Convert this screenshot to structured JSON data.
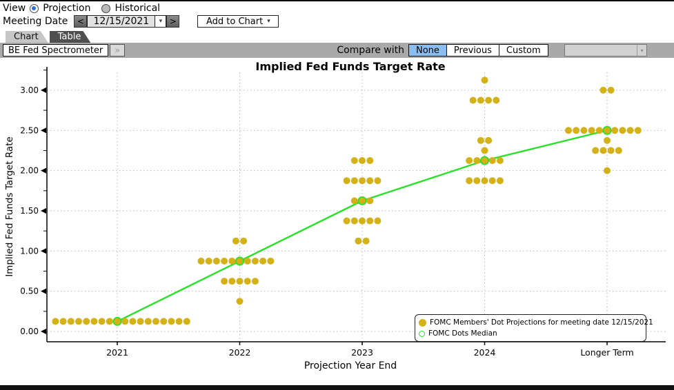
{
  "view_bar": {
    "label": "View",
    "options": [
      {
        "label": "Projection",
        "selected": true
      },
      {
        "label": "Historical",
        "selected": false
      }
    ]
  },
  "meeting_bar": {
    "label": "Meeting Date",
    "prev_icon": "<",
    "date_value": "12/15/2021",
    "date_caret": "▾",
    "next_icon": ">",
    "add_button_label": "Add to Chart",
    "add_button_caret": "▾"
  },
  "tabs": [
    {
      "label": "Chart",
      "active": true
    },
    {
      "label": "Table",
      "active": false
    }
  ],
  "toolbar": {
    "source_button": "BE Fed Spectrometer",
    "expand_icon": "»",
    "compare_label": "Compare with",
    "compare_options": [
      {
        "label": "None",
        "selected": true
      },
      {
        "label": "Previous",
        "selected": false
      },
      {
        "label": "Custom",
        "selected": false
      }
    ],
    "custom_dropdown": {
      "value": "",
      "caret": "▾"
    }
  },
  "chart_data": {
    "type": "scatter",
    "title": "Implied Fed Funds Target Rate",
    "xlabel": "Projection Year End",
    "ylabel": "Implied Fed Funds Target Rate",
    "categories": [
      "2021",
      "2022",
      "2023",
      "2024",
      "Longer Term"
    ],
    "ylim": [
      0,
      3.25
    ],
    "yticks": [
      0.0,
      0.5,
      1.0,
      1.5,
      2.0,
      2.5,
      3.0
    ],
    "minor_tick_step": 0.25,
    "grid": true,
    "legend_position": "bottom-right",
    "colors": {
      "dots": "#d3b117",
      "median": "#2ae02a",
      "gridline": "#b8b8b8"
    },
    "dot_series": {
      "name": "FOMC Members' Dot Projections for meeting date 12/15/2021",
      "groups": [
        {
          "category": "2021",
          "rows": [
            {
              "value": 0.125,
              "count": 18,
              "median_index": 8
            }
          ]
        },
        {
          "category": "2022",
          "rows": [
            {
              "value": 1.125,
              "count": 2
            },
            {
              "value": 0.875,
              "count": 10,
              "median_index": 5
            },
            {
              "value": 0.625,
              "count": 5
            },
            {
              "value": 0.375,
              "count": 1
            }
          ]
        },
        {
          "category": "2023",
          "rows": [
            {
              "value": 2.125,
              "count": 3
            },
            {
              "value": 1.875,
              "count": 5
            },
            {
              "value": 1.625,
              "count": 3,
              "median_index": 1
            },
            {
              "value": 1.375,
              "count": 5
            },
            {
              "value": 1.125,
              "count": 2
            }
          ]
        },
        {
          "category": "2024",
          "rows": [
            {
              "value": 3.125,
              "count": 1
            },
            {
              "value": 2.875,
              "count": 4
            },
            {
              "value": 2.375,
              "count": 2
            },
            {
              "value": 2.25,
              "count": 1
            },
            {
              "value": 2.125,
              "count": 5,
              "median_index": 2
            },
            {
              "value": 1.875,
              "count": 5
            }
          ]
        },
        {
          "category": "Longer Term",
          "rows": [
            {
              "value": 3.0,
              "count": 2
            },
            {
              "value": 2.5,
              "count": 10,
              "median_index": 5
            },
            {
              "value": 2.375,
              "count": 1
            },
            {
              "value": 2.25,
              "count": 4
            },
            {
              "value": 2.0,
              "count": 1
            }
          ]
        }
      ]
    },
    "median_series": {
      "name": "FOMC Dots Median",
      "values": [
        0.125,
        0.875,
        1.625,
        2.125,
        2.5
      ]
    }
  }
}
